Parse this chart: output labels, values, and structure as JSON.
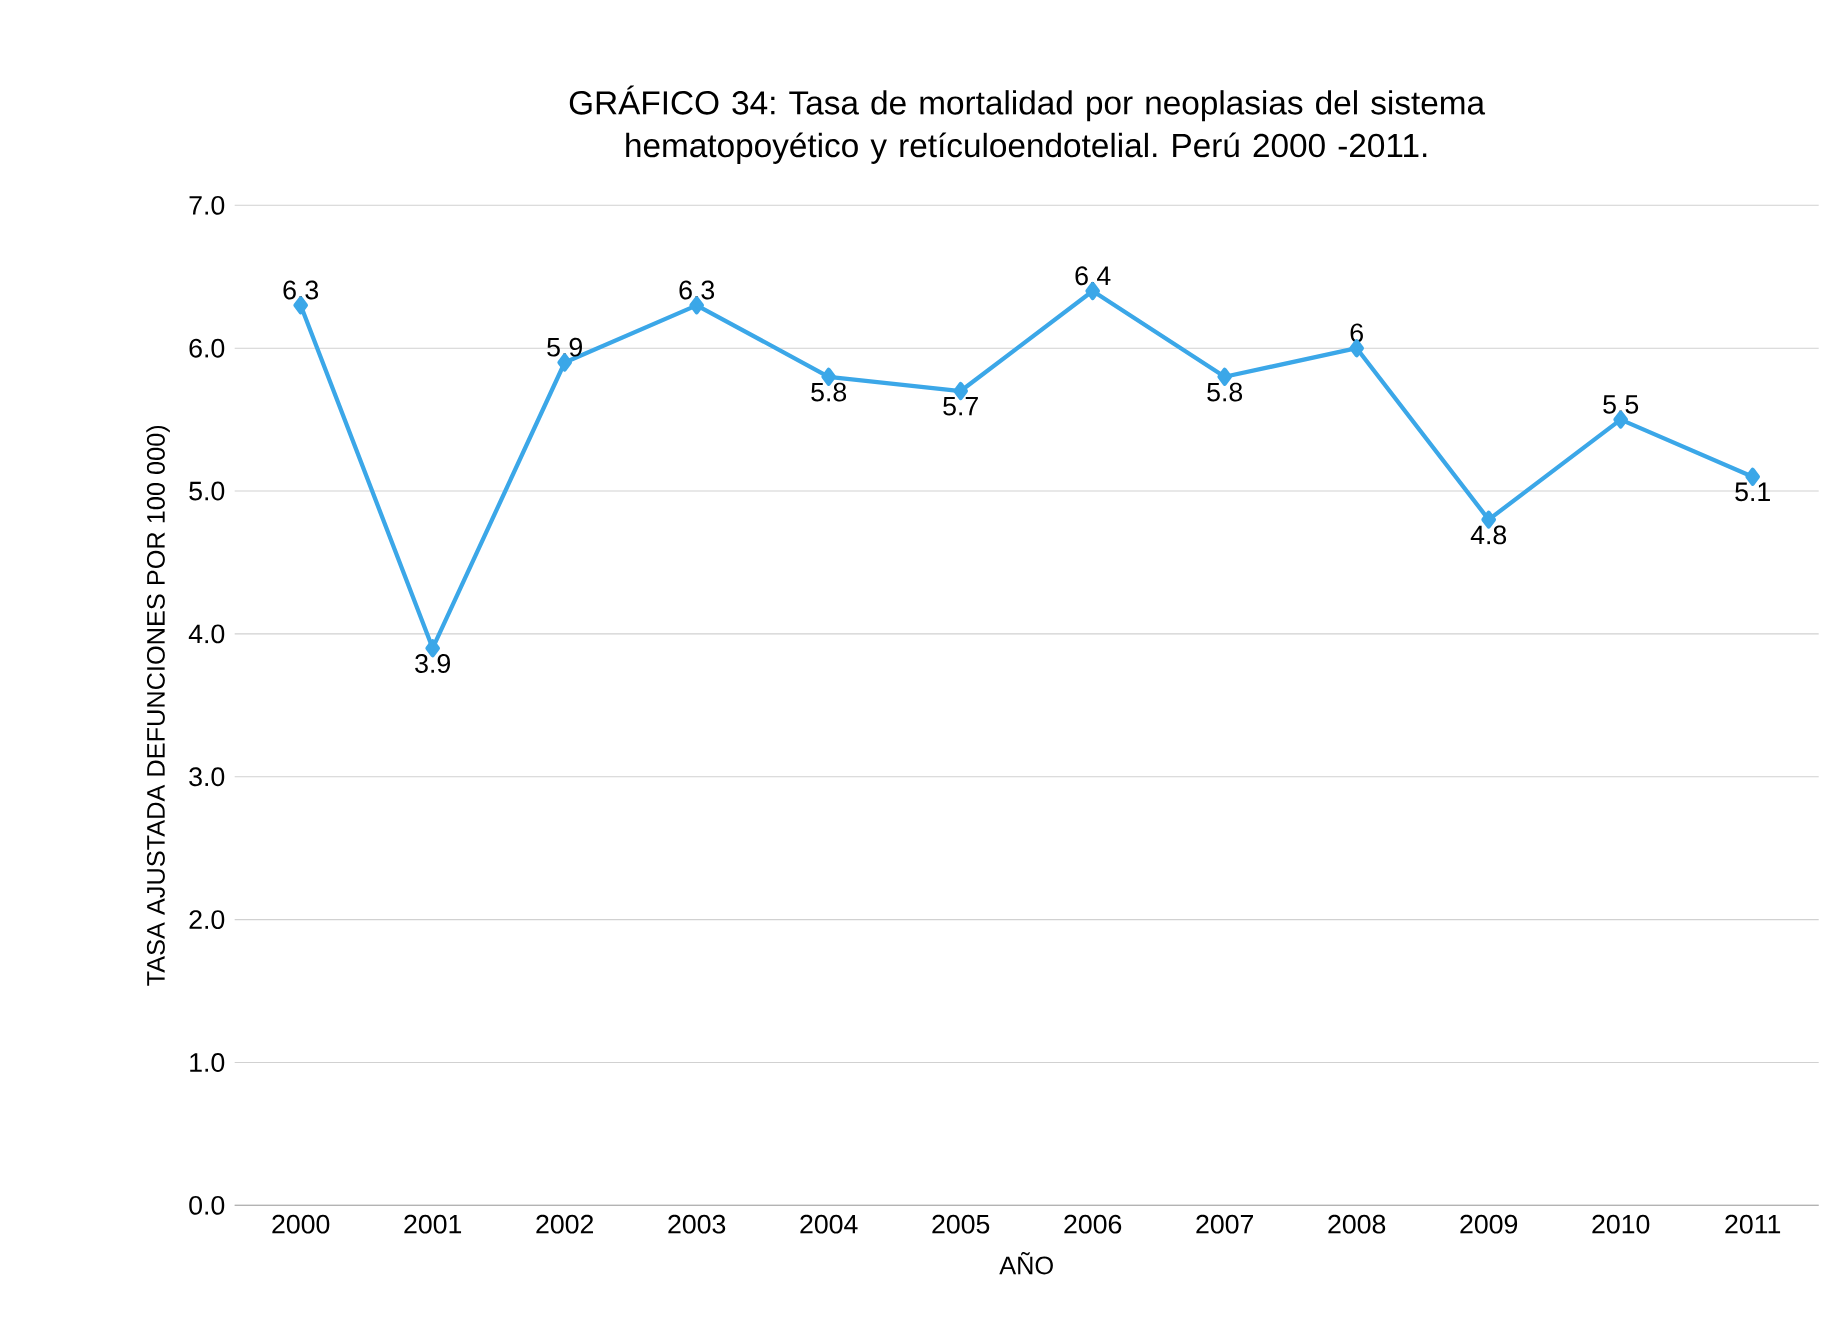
{
  "chart_data": {
    "type": "line",
    "title": "GRÁFICO 34: Tasa de mortalidad por neoplasias del sistema hematopoyético y retículoendotelial. Perú 2000 -2011.",
    "xlabel": "AÑO",
    "ylabel": "TASA AJUSTADA DEFUNCIONES POR 100 000)",
    "categories": [
      "2000",
      "2001",
      "2002",
      "2003",
      "2004",
      "2005",
      "2006",
      "2007",
      "2008",
      "2009",
      "2010",
      "2011"
    ],
    "values": [
      6.3,
      3.9,
      5.9,
      6.3,
      5.8,
      5.7,
      6.4,
      5.8,
      6,
      4.8,
      5.5,
      5.1
    ],
    "value_labels": [
      "6.3",
      "3.9",
      "5.9",
      "6.3",
      "5.8",
      "5.7",
      "6.4",
      "5.8",
      "6",
      "4.8",
      "5.5",
      "5.1"
    ],
    "color": "#3ba7e8",
    "marker": "diamond",
    "line_style": "solid",
    "ylim": [
      0,
      7
    ],
    "yticks": [
      {
        "value": 0,
        "label": "0.0"
      },
      {
        "value": 1,
        "label": "1.0"
      },
      {
        "value": 2,
        "label": "2.0"
      },
      {
        "value": 3,
        "label": "3.0"
      },
      {
        "value": 4,
        "label": "4.0"
      },
      {
        "value": 5,
        "label": "5.0"
      },
      {
        "value": 6,
        "label": "6.0"
      },
      {
        "value": 7,
        "label": "7.0"
      }
    ],
    "grid": "y"
  }
}
